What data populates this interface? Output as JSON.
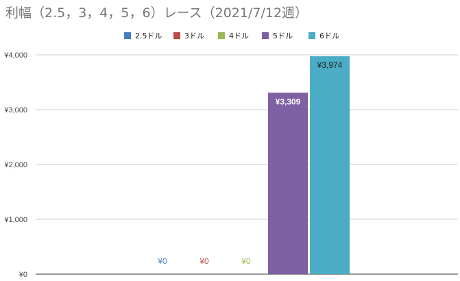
{
  "chart_data": {
    "type": "bar",
    "title": "利幅（2.5，3，4，5，6）レース（2021/7/12週）",
    "xlabel": "",
    "ylabel": "",
    "ylim": [
      0,
      4000
    ],
    "yticks": [
      "¥0",
      "¥1,000",
      "¥2,000",
      "¥3,000",
      "¥4,000"
    ],
    "ytick_values": [
      0,
      1000,
      2000,
      3000,
      4000
    ],
    "grid": true,
    "legend_position": "top",
    "series": [
      {
        "name": "2.5ドル",
        "value": 0,
        "label": "¥0",
        "color": "#4a7ebb"
      },
      {
        "name": "3ドル",
        "value": 0,
        "label": "¥0",
        "color": "#be4b48"
      },
      {
        "name": "4ドル",
        "value": 0,
        "label": "¥0",
        "color": "#98b954"
      },
      {
        "name": "5ドル",
        "value": 3309,
        "label": "¥3,309",
        "color": "#7f60a2"
      },
      {
        "name": "6ドル",
        "value": 3974,
        "label": "¥3,974",
        "color": "#4bacc6"
      }
    ]
  }
}
